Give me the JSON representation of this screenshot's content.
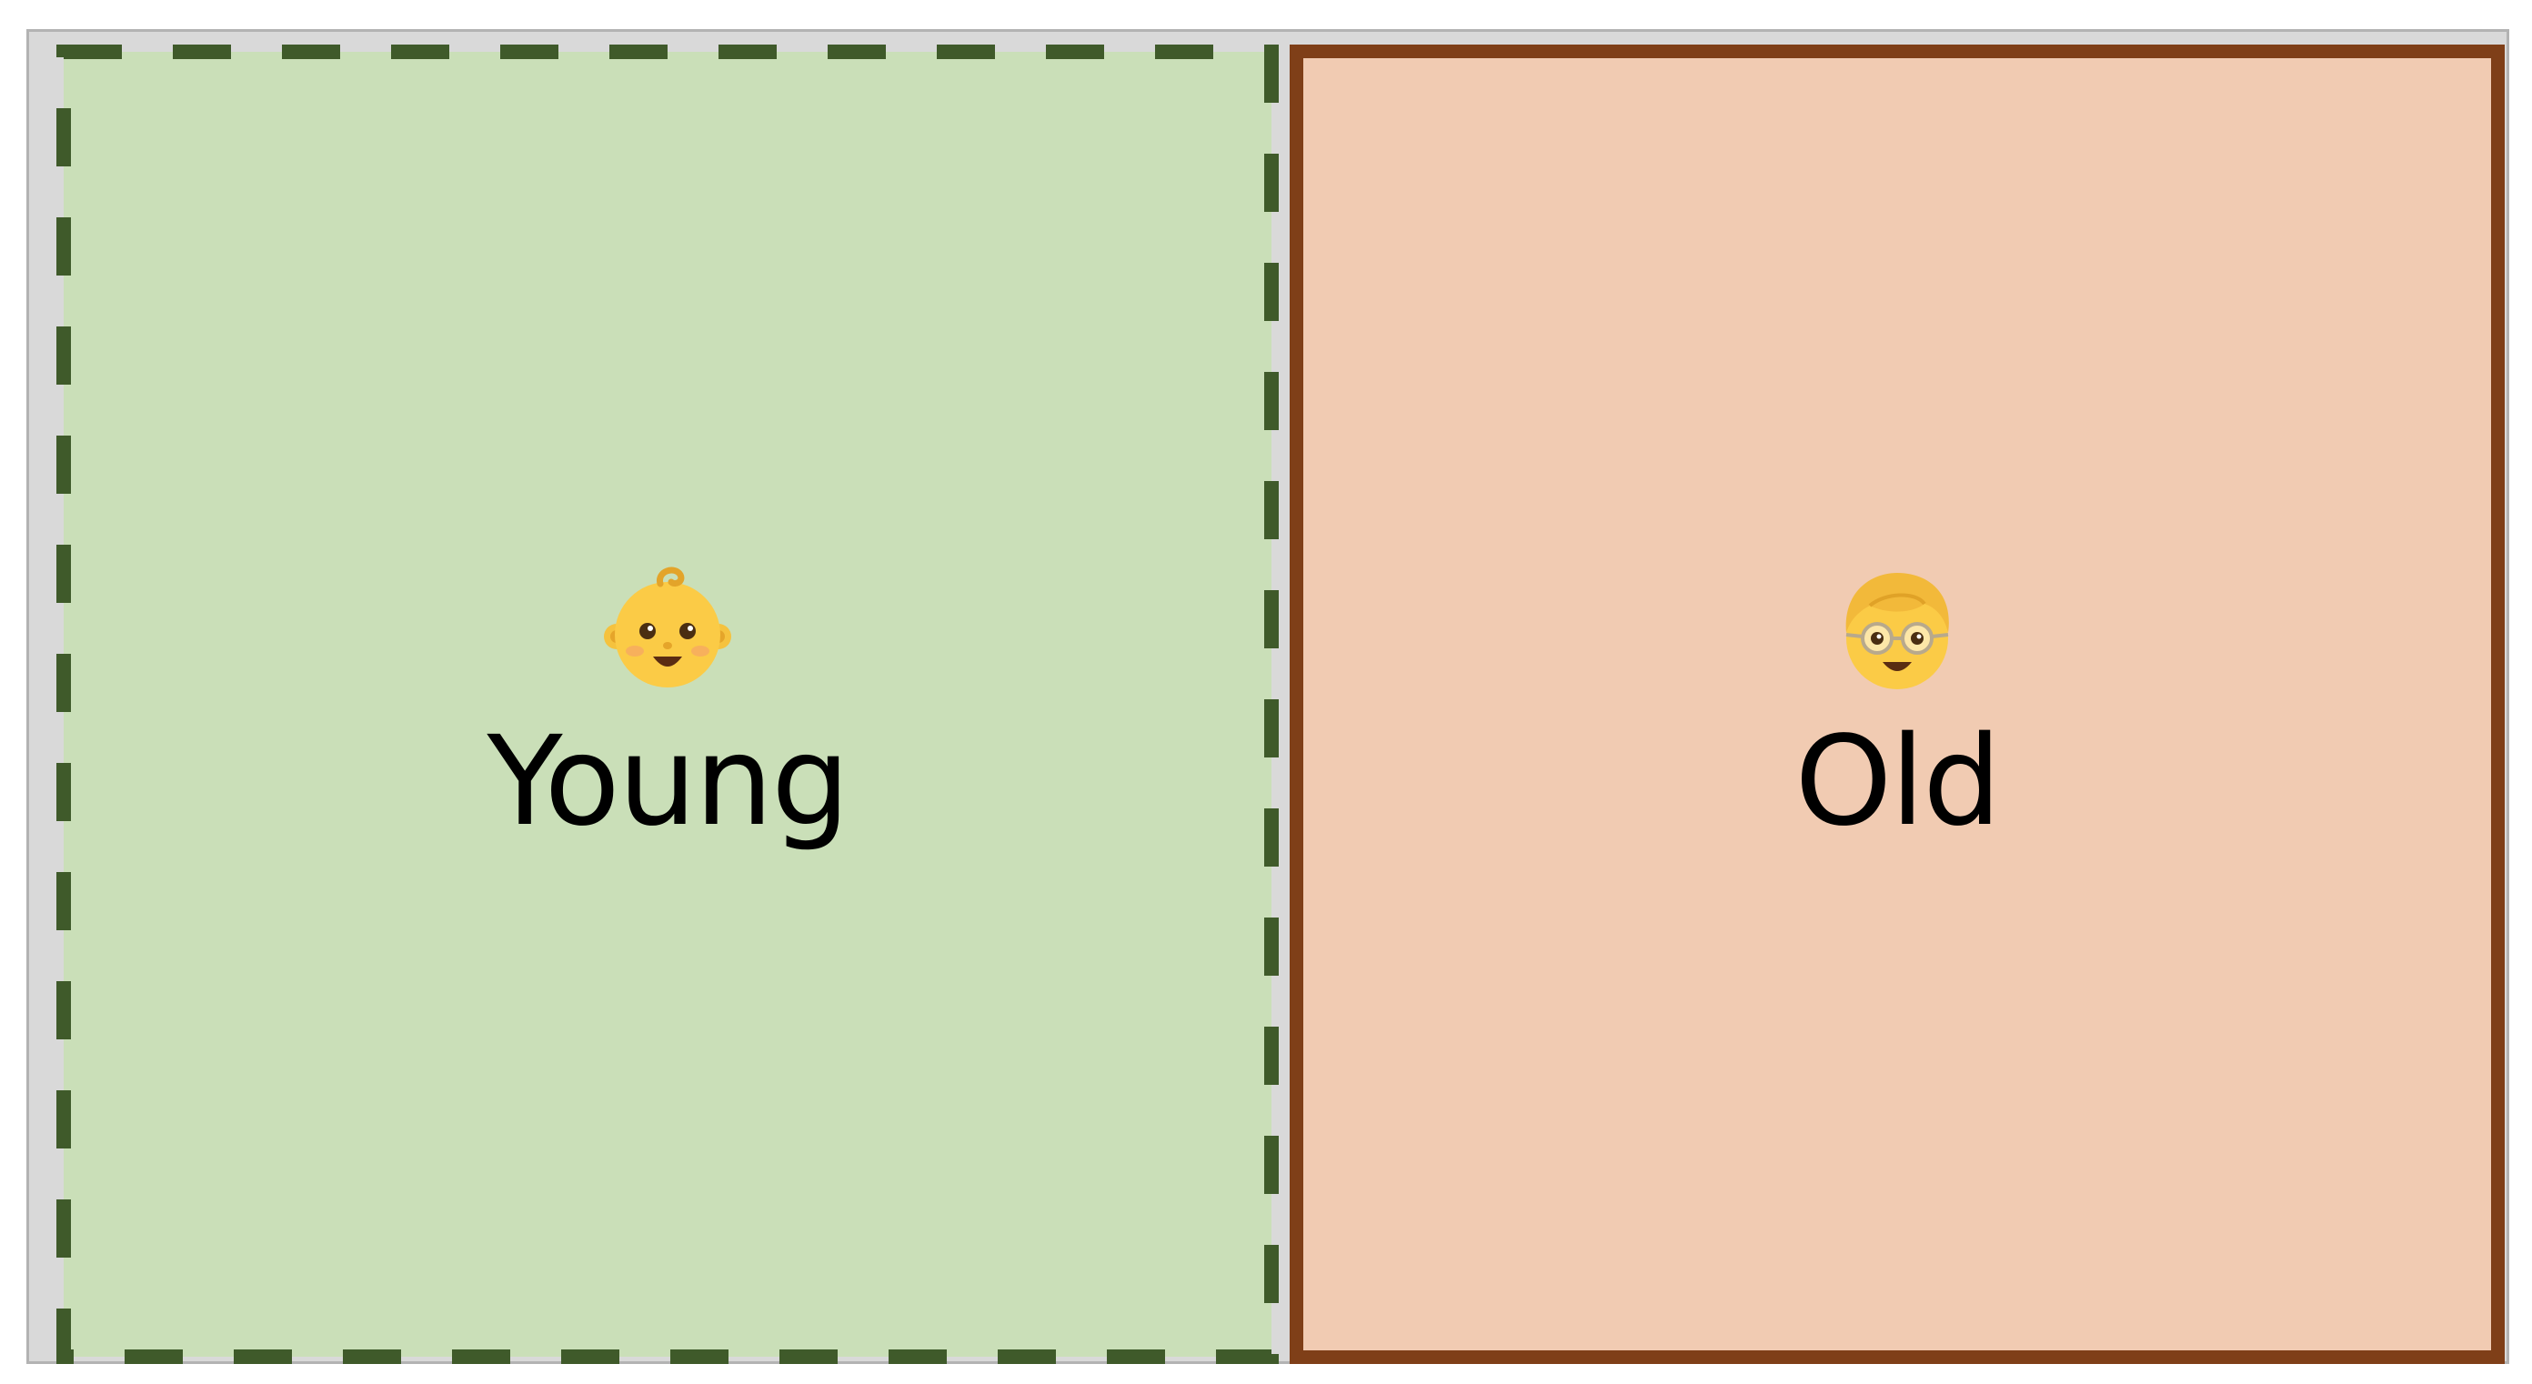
{
  "colors": {
    "frame_background": "#d9d9d9",
    "frame_border": "#b3b3b3",
    "young_fill": "#cadfb8",
    "young_border": "#3f5a2a",
    "old_fill": "#f1cbb2",
    "old_border": "#7f3f18",
    "text": "#000000"
  },
  "panels": [
    {
      "id": "young",
      "label": "Young",
      "icon": "baby-face-icon",
      "border_style": "dashed"
    },
    {
      "id": "old",
      "label": "Old",
      "icon": "older-person-with-glasses-icon",
      "border_style": "solid"
    }
  ]
}
